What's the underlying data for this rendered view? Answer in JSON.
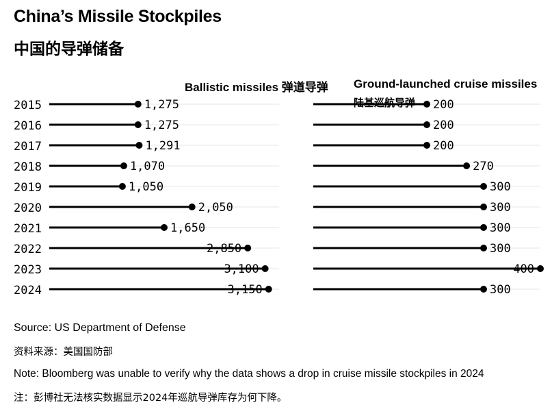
{
  "header": {
    "title": "China’s Missile Stockpiles",
    "subtitle": "中国的导弹储备"
  },
  "footer": {
    "source": "Source: US Department of Defense",
    "source_cn": "资料来源：美国国防部",
    "note": "Note: Bloomberg was unable to verify why the data shows a drop in cruise missile stockpiles in 2024",
    "note_cn": "注：彭博社无法核实数据显示2024年巡航导弹库存为何下降。"
  },
  "chart_data": [
    {
      "type": "bar",
      "title": "Ballistic missiles  弹道导弹",
      "categories": [
        "2015",
        "2016",
        "2017",
        "2018",
        "2019",
        "2020",
        "2021",
        "2022",
        "2023",
        "2024"
      ],
      "values": [
        1275,
        1275,
        1291,
        1070,
        1050,
        2050,
        1650,
        2850,
        3100,
        3150
      ],
      "value_labels": [
        "1,275",
        "1,275",
        "1,291",
        "1,070",
        "1,050",
        "2,050",
        "1,650",
        "2,850",
        "3,100",
        "3,150"
      ],
      "xlim": [
        0,
        3300
      ],
      "grid": false,
      "color": "#000000"
    },
    {
      "type": "bar",
      "title": "Ground-launched cruise missiles  陆基巡航导弹",
      "categories": [
        "2015",
        "2016",
        "2017",
        "2018",
        "2019",
        "2020",
        "2021",
        "2022",
        "2023",
        "2024"
      ],
      "values": [
        200,
        200,
        200,
        270,
        300,
        300,
        300,
        300,
        400,
        300
      ],
      "value_labels": [
        "200",
        "200",
        "200",
        "270",
        "300",
        "300",
        "300",
        "300",
        "400",
        "300"
      ],
      "xlim": [
        0,
        400
      ],
      "grid": false,
      "color": "#000000"
    }
  ]
}
